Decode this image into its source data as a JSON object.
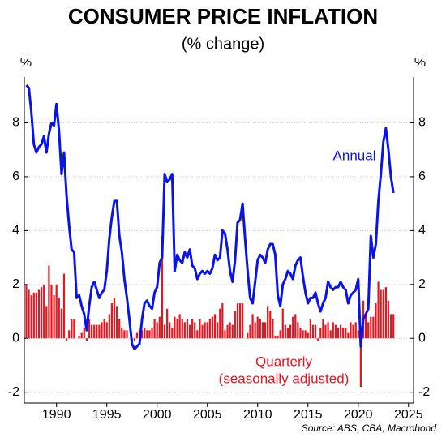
{
  "chart_data": {
    "type": "combo",
    "title": "CONSUMER PRICE INFLATION",
    "subtitle": "(% change)",
    "y_label": "%",
    "y2_label": "%",
    "source": "Source: ABS, CBA, Macrobond",
    "xlim": [
      1986.8,
      2025.5
    ],
    "xticks": [
      1990,
      1995,
      2000,
      2005,
      2010,
      2015,
      2020,
      2025
    ],
    "ylim": [
      -2.4,
      9.7
    ],
    "yticks": [
      -2,
      0,
      2,
      4,
      6,
      8
    ],
    "y2lim": [
      -2.4,
      9.7
    ],
    "y2ticks": [
      -2,
      0,
      2,
      4,
      6,
      8
    ],
    "grid": true,
    "x": [
      1987,
      1987.25,
      1987.5,
      1987.75,
      1988,
      1988.25,
      1988.5,
      1988.75,
      1989,
      1989.25,
      1989.5,
      1989.75,
      1990,
      1990.25,
      1990.5,
      1990.75,
      1991,
      1991.25,
      1991.5,
      1991.75,
      1992,
      1992.25,
      1992.5,
      1992.75,
      1993,
      1993.25,
      1993.5,
      1993.75,
      1994,
      1994.25,
      1994.5,
      1994.75,
      1995,
      1995.25,
      1995.5,
      1995.75,
      1996,
      1996.25,
      1996.5,
      1996.75,
      1997,
      1997.25,
      1997.5,
      1997.75,
      1998,
      1998.25,
      1998.5,
      1998.75,
      1999,
      1999.25,
      1999.5,
      1999.75,
      2000,
      2000.25,
      2000.5,
      2000.75,
      2001,
      2001.25,
      2001.5,
      2001.75,
      2002,
      2002.25,
      2002.5,
      2002.75,
      2003,
      2003.25,
      2003.5,
      2003.75,
      2004,
      2004.25,
      2004.5,
      2004.75,
      2005,
      2005.25,
      2005.5,
      2005.75,
      2006,
      2006.25,
      2006.5,
      2006.75,
      2007,
      2007.25,
      2007.5,
      2007.75,
      2008,
      2008.25,
      2008.5,
      2008.75,
      2009,
      2009.25,
      2009.5,
      2009.75,
      2010,
      2010.25,
      2010.5,
      2010.75,
      2011,
      2011.25,
      2011.5,
      2011.75,
      2012,
      2012.25,
      2012.5,
      2012.75,
      2013,
      2013.25,
      2013.5,
      2013.75,
      2014,
      2014.25,
      2014.5,
      2014.75,
      2015,
      2015.25,
      2015.5,
      2015.75,
      2016,
      2016.25,
      2016.5,
      2016.75,
      2017,
      2017.25,
      2017.5,
      2017.75,
      2018,
      2018.25,
      2018.5,
      2018.75,
      2019,
      2019.25,
      2019.5,
      2019.75,
      2020,
      2020.25,
      2020.5,
      2020.75,
      2021,
      2021.25,
      2021.5,
      2021.75,
      2022,
      2022.25,
      2022.5,
      2022.75,
      2023,
      2023.25,
      2023.5
    ],
    "series": [
      {
        "name": "Annual",
        "type": "line",
        "color": "#0a14e6",
        "axis": "y",
        "values": [
          9.4,
          9.3,
          8.4,
          7.2,
          6.9,
          7.1,
          7.2,
          7.5,
          6.9,
          7.6,
          8.0,
          7.9,
          8.7,
          7.7,
          6.1,
          6.9,
          5.3,
          4.2,
          3.3,
          3.2,
          1.5,
          1.6,
          1.2,
          0.9,
          0.3,
          1.2,
          1.9,
          2.1,
          1.8,
          1.5,
          1.7,
          1.8,
          2.5,
          3.7,
          4.5,
          5.1,
          5.1,
          3.8,
          3.2,
          2.2,
          1.5,
          0.7,
          -0.2,
          -0.4,
          -0.3,
          -0.2,
          0.7,
          1.3,
          1.4,
          1.2,
          1.1,
          1.7,
          1.9,
          2.8,
          3.0,
          6.1,
          5.8,
          5.9,
          6.1,
          2.5,
          3.1,
          2.9,
          2.8,
          3.2,
          3.0,
          3.3,
          2.7,
          2.6,
          2.2,
          2.4,
          2.5,
          2.4,
          2.5,
          2.4,
          2.6,
          3.1,
          2.9,
          3.0,
          4.0,
          3.9,
          3.3,
          2.5,
          2.1,
          2.9,
          4.3,
          4.4,
          5.0,
          3.7,
          2.5,
          1.5,
          1.3,
          2.1,
          2.9,
          3.1,
          3.0,
          2.8,
          3.3,
          3.5,
          3.5,
          3.1,
          1.6,
          1.2,
          2.0,
          2.2,
          2.5,
          2.4,
          2.2,
          2.7,
          2.9,
          3.0,
          2.3,
          1.7,
          1.3,
          1.5,
          1.5,
          1.7,
          1.3,
          1.0,
          1.3,
          1.5,
          2.1,
          1.9,
          1.8,
          1.9,
          1.9,
          2.1,
          1.9,
          1.8,
          1.3,
          1.6,
          1.7,
          1.8,
          2.2,
          -0.3,
          0.7,
          0.9,
          1.1,
          3.8,
          3.0,
          3.5,
          5.1,
          6.1,
          7.3,
          7.8,
          7.0,
          6.0,
          5.4
        ]
      },
      {
        "name": "Quarterly",
        "note": "(seasonally adjusted)",
        "type": "bar",
        "color": "#e8141e",
        "axis": "y",
        "values": [
          2.0,
          1.8,
          1.6,
          1.7,
          1.7,
          1.8,
          1.9,
          2.0,
          1.2,
          2.7,
          2.0,
          1.6,
          2.0,
          1.5,
          1.1,
          2.4,
          -0.1,
          0.3,
          0.7,
          0.7,
          0.0,
          0.1,
          0.2,
          0.4,
          -0.1,
          0.7,
          0.5,
          0.5,
          0.5,
          0.5,
          0.6,
          0.7,
          0.6,
          0.9,
          1.3,
          1.5,
          1.2,
          0.7,
          0.4,
          0.3,
          0.3,
          0.0,
          -0.3,
          -0.1,
          0.2,
          0.3,
          0.3,
          0.4,
          0.3,
          0.3,
          0.4,
          0.7,
          0.6,
          0.8,
          3.8,
          0.5,
          1.1,
          0.6,
          0.4,
          0.8,
          0.7,
          0.9,
          0.7,
          0.6,
          0.7,
          0.5,
          0.7,
          0.6,
          0.3,
          0.7,
          0.5,
          0.6,
          0.6,
          0.7,
          0.8,
          0.9,
          0.6,
          1.1,
          1.3,
          0.3,
          0.5,
          0.6,
          0.5,
          1.0,
          1.3,
          1.3,
          1.3,
          0.0,
          0.2,
          0.5,
          0.9,
          0.6,
          0.8,
          0.7,
          0.6,
          0.6,
          1.2,
          1.0,
          0.7,
          0.1,
          0.1,
          0.3,
          1.1,
          0.5,
          0.4,
          0.5,
          0.8,
          0.9,
          0.6,
          0.4,
          0.3,
          0.3,
          0.2,
          0.7,
          0.5,
          0.5,
          -0.1,
          0.4,
          0.7,
          0.5,
          0.6,
          0.3,
          0.6,
          0.5,
          0.4,
          0.5,
          0.4,
          0.4,
          0.2,
          0.6,
          0.5,
          0.6,
          0.3,
          -1.8,
          1.4,
          0.9,
          0.6,
          0.8,
          0.8,
          1.3,
          2.1,
          1.8,
          1.8,
          1.9,
          1.4,
          0.9,
          0.9
        ]
      }
    ]
  }
}
